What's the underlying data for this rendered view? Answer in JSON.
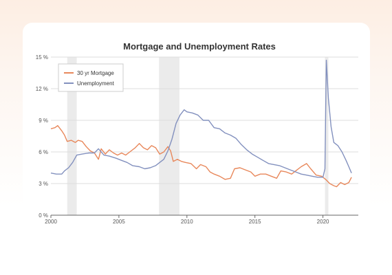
{
  "chart_data": {
    "type": "line",
    "title": "Mortgage and Unemployment Rates",
    "xlabel": "",
    "ylabel": "",
    "xlim": [
      2000,
      2022.6
    ],
    "ylim": [
      0,
      15
    ],
    "x_ticks": [
      "2000",
      "2005",
      "2010",
      "2015",
      "2020"
    ],
    "y_ticks": [
      "0 %",
      "3 %",
      "6 %",
      "9 %",
      "12 %",
      "15 %"
    ],
    "grid": true,
    "legend_position": "top-left",
    "recessions": [
      [
        2001.2,
        2001.9
      ],
      [
        2007.95,
        2009.45
      ],
      [
        2020.15,
        2020.4
      ]
    ],
    "recession_color": "#ebebeb",
    "series": [
      {
        "name": "30 yr Mortgage",
        "color": "#e8875a",
        "points": [
          [
            2000.0,
            8.2
          ],
          [
            2000.3,
            8.3
          ],
          [
            2000.5,
            8.5
          ],
          [
            2000.8,
            8.0
          ],
          [
            2001.0,
            7.6
          ],
          [
            2001.2,
            7.0
          ],
          [
            2001.5,
            7.1
          ],
          [
            2001.8,
            6.9
          ],
          [
            2002.0,
            7.1
          ],
          [
            2002.3,
            7.0
          ],
          [
            2002.6,
            6.5
          ],
          [
            2002.9,
            6.1
          ],
          [
            2003.2,
            5.9
          ],
          [
            2003.5,
            5.3
          ],
          [
            2003.7,
            6.3
          ],
          [
            2004.0,
            5.8
          ],
          [
            2004.3,
            6.2
          ],
          [
            2004.6,
            5.9
          ],
          [
            2004.9,
            5.7
          ],
          [
            2005.2,
            5.9
          ],
          [
            2005.5,
            5.7
          ],
          [
            2005.8,
            6.0
          ],
          [
            2006.2,
            6.4
          ],
          [
            2006.5,
            6.8
          ],
          [
            2006.8,
            6.4
          ],
          [
            2007.1,
            6.2
          ],
          [
            2007.4,
            6.6
          ],
          [
            2007.7,
            6.4
          ],
          [
            2008.0,
            5.8
          ],
          [
            2008.3,
            6.0
          ],
          [
            2008.6,
            6.5
          ],
          [
            2008.8,
            6.1
          ],
          [
            2009.0,
            5.1
          ],
          [
            2009.3,
            5.3
          ],
          [
            2009.6,
            5.1
          ],
          [
            2009.9,
            5.0
          ],
          [
            2010.3,
            4.9
          ],
          [
            2010.7,
            4.4
          ],
          [
            2011.0,
            4.8
          ],
          [
            2011.4,
            4.6
          ],
          [
            2011.7,
            4.1
          ],
          [
            2012.0,
            3.9
          ],
          [
            2012.4,
            3.7
          ],
          [
            2012.8,
            3.4
          ],
          [
            2013.2,
            3.5
          ],
          [
            2013.5,
            4.4
          ],
          [
            2013.9,
            4.5
          ],
          [
            2014.3,
            4.3
          ],
          [
            2014.7,
            4.1
          ],
          [
            2015.0,
            3.7
          ],
          [
            2015.4,
            3.9
          ],
          [
            2015.8,
            3.9
          ],
          [
            2016.2,
            3.7
          ],
          [
            2016.6,
            3.5
          ],
          [
            2016.9,
            4.2
          ],
          [
            2017.3,
            4.1
          ],
          [
            2017.7,
            3.9
          ],
          [
            2018.0,
            4.2
          ],
          [
            2018.4,
            4.6
          ],
          [
            2018.8,
            4.9
          ],
          [
            2019.1,
            4.4
          ],
          [
            2019.5,
            3.8
          ],
          [
            2019.9,
            3.7
          ],
          [
            2020.2,
            3.4
          ],
          [
            2020.5,
            3.0
          ],
          [
            2020.8,
            2.8
          ],
          [
            2021.0,
            2.7
          ],
          [
            2021.3,
            3.1
          ],
          [
            2021.6,
            2.9
          ],
          [
            2021.9,
            3.1
          ],
          [
            2022.1,
            3.6
          ]
        ]
      },
      {
        "name": "Unemployment",
        "color": "#8290be",
        "points": [
          [
            2000.0,
            4.0
          ],
          [
            2000.4,
            3.9
          ],
          [
            2000.8,
            3.9
          ],
          [
            2001.0,
            4.2
          ],
          [
            2001.3,
            4.5
          ],
          [
            2001.6,
            5.0
          ],
          [
            2001.9,
            5.7
          ],
          [
            2002.3,
            5.8
          ],
          [
            2002.8,
            5.9
          ],
          [
            2003.2,
            5.9
          ],
          [
            2003.5,
            6.3
          ],
          [
            2003.9,
            5.7
          ],
          [
            2004.3,
            5.6
          ],
          [
            2004.8,
            5.4
          ],
          [
            2005.2,
            5.2
          ],
          [
            2005.6,
            5.0
          ],
          [
            2006.0,
            4.7
          ],
          [
            2006.5,
            4.6
          ],
          [
            2006.9,
            4.4
          ],
          [
            2007.3,
            4.5
          ],
          [
            2007.7,
            4.7
          ],
          [
            2008.0,
            5.0
          ],
          [
            2008.3,
            5.3
          ],
          [
            2008.6,
            6.1
          ],
          [
            2008.9,
            7.2
          ],
          [
            2009.2,
            8.7
          ],
          [
            2009.5,
            9.5
          ],
          [
            2009.8,
            10.0
          ],
          [
            2010.0,
            9.8
          ],
          [
            2010.4,
            9.7
          ],
          [
            2010.8,
            9.5
          ],
          [
            2011.2,
            9.0
          ],
          [
            2011.6,
            9.0
          ],
          [
            2012.0,
            8.3
          ],
          [
            2012.4,
            8.2
          ],
          [
            2012.8,
            7.8
          ],
          [
            2013.2,
            7.6
          ],
          [
            2013.6,
            7.3
          ],
          [
            2014.0,
            6.7
          ],
          [
            2014.4,
            6.2
          ],
          [
            2014.8,
            5.8
          ],
          [
            2015.2,
            5.5
          ],
          [
            2015.6,
            5.2
          ],
          [
            2016.0,
            4.9
          ],
          [
            2016.4,
            4.8
          ],
          [
            2016.8,
            4.7
          ],
          [
            2017.2,
            4.5
          ],
          [
            2017.6,
            4.3
          ],
          [
            2018.0,
            4.1
          ],
          [
            2018.4,
            3.9
          ],
          [
            2018.8,
            3.8
          ],
          [
            2019.2,
            3.7
          ],
          [
            2019.6,
            3.6
          ],
          [
            2020.0,
            3.6
          ],
          [
            2020.15,
            4.4
          ],
          [
            2020.25,
            14.7
          ],
          [
            2020.4,
            11.1
          ],
          [
            2020.6,
            8.4
          ],
          [
            2020.8,
            6.9
          ],
          [
            2021.1,
            6.6
          ],
          [
            2021.4,
            6.0
          ],
          [
            2021.7,
            5.2
          ],
          [
            2021.9,
            4.6
          ],
          [
            2022.1,
            4.0
          ]
        ]
      }
    ]
  }
}
